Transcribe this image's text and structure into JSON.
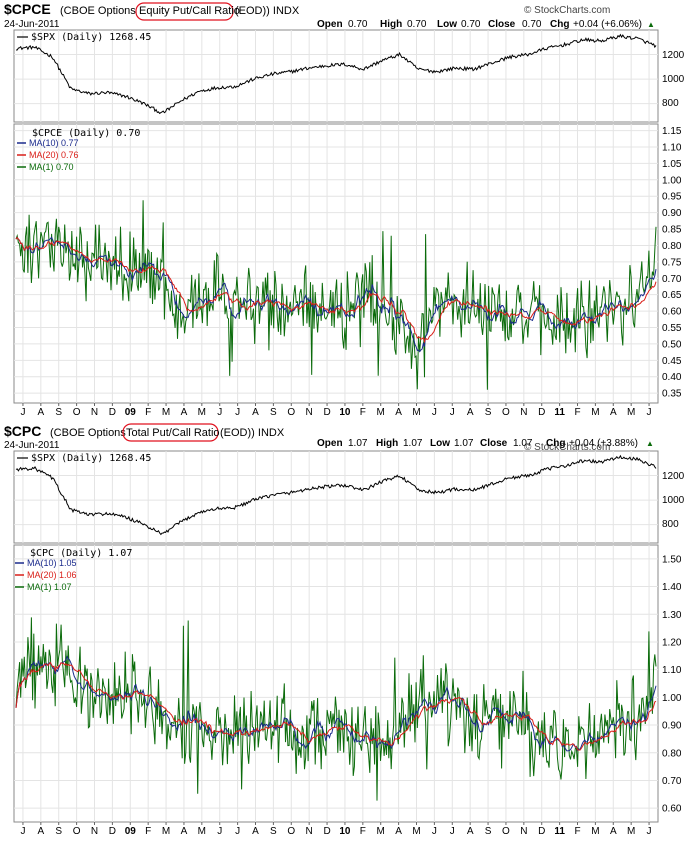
{
  "watermark": "© StockCharts.com",
  "colors": {
    "spx": "#000000",
    "ma10": "#1a2a8c",
    "ma20": "#d91e18",
    "ma1": "#0b6b0b",
    "grid": "#d8d8d8",
    "highlight": "#e0101e"
  },
  "x_axis_months": [
    "J",
    "A",
    "S",
    "O",
    "N",
    "D",
    "09",
    "F",
    "M",
    "A",
    "M",
    "J",
    "J",
    "A",
    "S",
    "O",
    "N",
    "D",
    "10",
    "F",
    "M",
    "A",
    "M",
    "J",
    "J",
    "A",
    "S",
    "O",
    "N",
    "D",
    "11",
    "F",
    "M",
    "A",
    "M",
    "J"
  ],
  "panels": [
    {
      "symbol": "$CPCE",
      "desc_pre": "(CBOE Options ",
      "desc_highlight": "Equity Put/Call Ratio",
      "desc_post": "(EOD)) INDX",
      "date": "24-Jun-2011",
      "ohlc": [
        {
          "label": "Open",
          "value": "0.70"
        },
        {
          "label": "High",
          "value": "0.70"
        },
        {
          "label": "Low",
          "value": "0.70"
        },
        {
          "label": "Close",
          "value": "0.70"
        },
        {
          "label": "Chg",
          "value": "+0.04 (+6.06%)"
        }
      ],
      "chg_arrow": "▲",
      "spx_label": "$SPX (Daily) 1268.45",
      "spx_ticks": [
        "1200",
        "1000",
        "800"
      ],
      "main_label": "$CPCE (Daily) 0.70",
      "legend": [
        {
          "label": "MA(10) 0.77",
          "color": "#1a2a8c"
        },
        {
          "label": "MA(20) 0.76",
          "color": "#d91e18"
        },
        {
          "label": "MA(1) 0.70",
          "color": "#0b6b0b"
        }
      ],
      "y_ticks": [
        "1.15",
        "1.10",
        "1.05",
        "1.00",
        "0.95",
        "0.90",
        "0.85",
        "0.80",
        "0.75",
        "0.70",
        "0.65",
        "0.60",
        "0.55",
        "0.50",
        "0.45",
        "0.40",
        "0.35"
      ]
    },
    {
      "symbol": "$CPC",
      "desc_pre": "(CBOE Options ",
      "desc_highlight": "Total Put/Call Ratio",
      "desc_post": "(EOD)) INDX",
      "date": "24-Jun-2011",
      "ohlc": [
        {
          "label": "Open",
          "value": "1.07"
        },
        {
          "label": "High",
          "value": "1.07"
        },
        {
          "label": "Low",
          "value": "1.07"
        },
        {
          "label": "Close",
          "value": "1.07"
        },
        {
          "label": "Chg",
          "value": "+0.04 (+3.88%)"
        }
      ],
      "chg_arrow": "▲",
      "spx_label": "$SPX (Daily) 1268.45",
      "spx_ticks": [
        "1200",
        "1000",
        "800"
      ],
      "main_label": "$CPC (Daily) 1.07",
      "legend": [
        {
          "label": "MA(10) 1.05",
          "color": "#1a2a8c"
        },
        {
          "label": "MA(20) 1.06",
          "color": "#d91e18"
        },
        {
          "label": "MA(1) 1.07",
          "color": "#0b6b0b"
        }
      ],
      "y_ticks": [
        "1.50",
        "1.40",
        "1.30",
        "1.20",
        "1.10",
        "1.00",
        "0.90",
        "0.80",
        "0.70",
        "0.60"
      ]
    }
  ],
  "chart_data": [
    {
      "type": "line",
      "title": "$CPCE (CBOE Options Equity Put/Call Ratio (EOD)) INDX",
      "period": "Jul 2008 – Jun 2011 (daily)",
      "ylim": [
        0.32,
        1.17
      ],
      "spx_ylim": [
        650,
        1400
      ],
      "months": [
        "J",
        "A",
        "S",
        "O",
        "N",
        "D",
        "09",
        "F",
        "M",
        "A",
        "M",
        "J",
        "J",
        "A",
        "S",
        "O",
        "N",
        "D",
        "10",
        "F",
        "M",
        "A",
        "M",
        "J",
        "J",
        "A",
        "S",
        "O",
        "N",
        "D",
        "11",
        "F",
        "M",
        "A",
        "M",
        "J"
      ],
      "spx": [
        1250,
        1260,
        1180,
        920,
        880,
        890,
        860,
        800,
        720,
        820,
        900,
        930,
        940,
        1000,
        1040,
        1060,
        1090,
        1110,
        1120,
        1080,
        1150,
        1200,
        1080,
        1060,
        1090,
        1080,
        1130,
        1180,
        1200,
        1250,
        1280,
        1320,
        1310,
        1350,
        1330,
        1270
      ],
      "ma20": [
        0.73,
        0.78,
        0.8,
        0.76,
        0.79,
        0.72,
        0.74,
        0.73,
        0.68,
        0.62,
        0.63,
        0.7,
        0.66,
        0.62,
        0.6,
        0.62,
        0.63,
        0.61,
        0.6,
        0.69,
        0.58,
        0.55,
        0.48,
        0.64,
        0.63,
        0.65,
        0.61,
        0.6,
        0.58,
        0.57,
        0.55,
        0.57,
        0.61,
        0.61,
        0.63,
        0.76
      ],
      "series": [
        {
          "name": "MA(10)",
          "last": 0.77
        },
        {
          "name": "MA(20)",
          "last": 0.76
        },
        {
          "name": "MA(1)",
          "last": 0.7
        }
      ]
    },
    {
      "type": "line",
      "title": "$CPC (CBOE Options Total Put/Call Ratio (EOD)) INDX",
      "period": "Jul 2008 – Jun 2011 (daily)",
      "ylim": [
        0.55,
        1.55
      ],
      "spx_ylim": [
        650,
        1400
      ],
      "months": [
        "J",
        "A",
        "S",
        "O",
        "N",
        "D",
        "09",
        "F",
        "M",
        "A",
        "M",
        "J",
        "J",
        "A",
        "S",
        "O",
        "N",
        "D",
        "10",
        "F",
        "M",
        "A",
        "M",
        "J",
        "J",
        "A",
        "S",
        "O",
        "N",
        "D",
        "11",
        "F",
        "M",
        "A",
        "M",
        "J"
      ],
      "spx": [
        1250,
        1260,
        1180,
        920,
        880,
        890,
        860,
        800,
        720,
        820,
        900,
        930,
        940,
        1000,
        1040,
        1060,
        1090,
        1110,
        1120,
        1080,
        1150,
        1200,
        1080,
        1060,
        1090,
        1080,
        1130,
        1180,
        1200,
        1250,
        1280,
        1320,
        1310,
        1350,
        1330,
        1270
      ],
      "ma20": [
        1.05,
        1.1,
        1.12,
        1.06,
        1.03,
        0.98,
        1.02,
        1.01,
        0.95,
        0.88,
        0.86,
        0.9,
        0.87,
        0.88,
        0.9,
        0.88,
        0.87,
        0.85,
        0.88,
        0.87,
        0.83,
        0.88,
        1.02,
        1.0,
        0.95,
        0.9,
        0.92,
        0.9,
        0.88,
        0.85,
        0.82,
        0.85,
        0.88,
        0.9,
        0.93,
        1.06
      ],
      "series": [
        {
          "name": "MA(10)",
          "last": 1.05
        },
        {
          "name": "MA(20)",
          "last": 1.06
        },
        {
          "name": "MA(1)",
          "last": 1.07
        }
      ]
    }
  ]
}
